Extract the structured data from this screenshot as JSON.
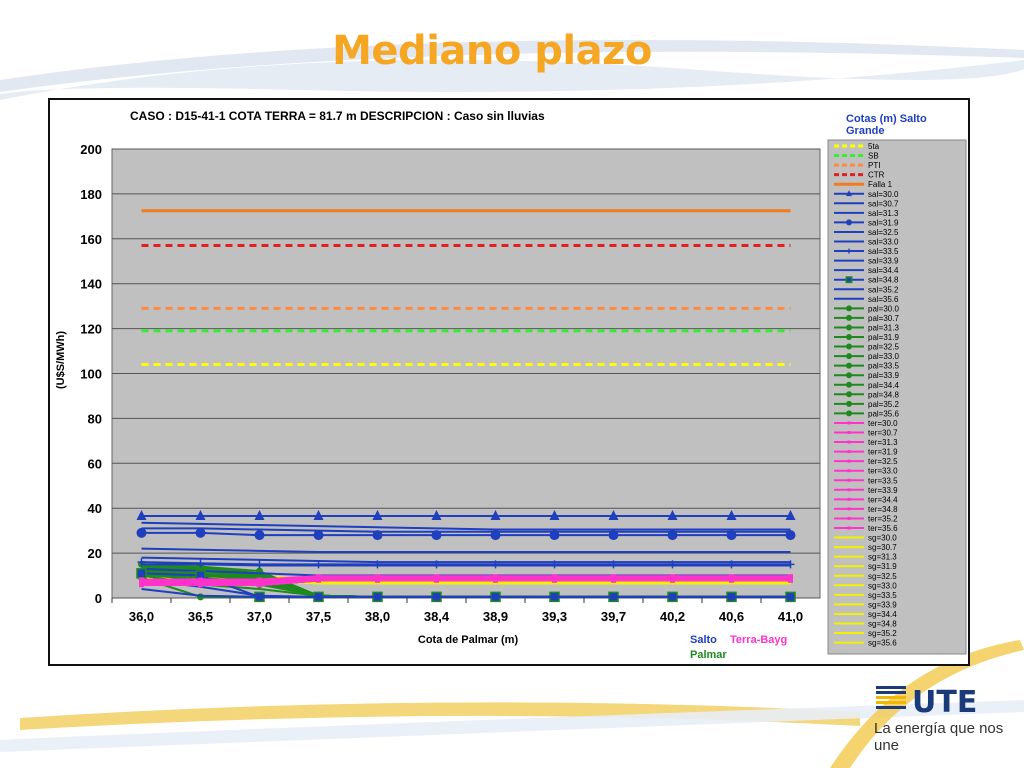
{
  "slide": {
    "title": "Mediano plazo",
    "tagline": "La energía que nos une",
    "logo_text": "UTE"
  },
  "colors": {
    "title": "#f5a623",
    "plot_bg": "#c0c0c0",
    "salto": "#1f3fbf",
    "palmar": "#1e8a1e",
    "terra": "#ff33cc",
    "sg": "#f2f200",
    "cota_5ta": "#ffff00",
    "cota_sb": "#33ee33",
    "cota_pti": "#ff8a3d",
    "cota_ctr": "#e02020",
    "falla": "#f47a20"
  },
  "chart_data": {
    "type": "line",
    "case_label": "CASO : D15-41-1 COTA TERRA = 81.7 m  DESCRIPCION :     Caso sin lluvias",
    "xlabel": "Cota de Palmar (m)",
    "ylabel": "(U$S/MWh)",
    "categories": [
      "36,0",
      "36,5",
      "37,0",
      "37,5",
      "38,0",
      "38,4",
      "38,9",
      "39,3",
      "39,7",
      "40,2",
      "40,6",
      "41,0"
    ],
    "ylim": [
      0,
      200
    ],
    "yticks": [
      0,
      20,
      40,
      60,
      80,
      100,
      120,
      140,
      160,
      180,
      200
    ],
    "grid": true,
    "legend_position": "right",
    "legend_title": "Cotas (m) Salto Grande",
    "bottom_labels": {
      "salto": "Salto",
      "terra": "Terra-Bayg",
      "palmar": "Palmar"
    },
    "series": [
      {
        "name": "5ta",
        "group": "cota",
        "color": "#ffff00",
        "dash": true,
        "marker": "none",
        "values": [
          104,
          104,
          104,
          104,
          104,
          104,
          104,
          104,
          104,
          104,
          104,
          104
        ]
      },
      {
        "name": "SB",
        "group": "cota",
        "color": "#33ee33",
        "dash": true,
        "marker": "none",
        "values": [
          119,
          119,
          119,
          119,
          119,
          119,
          119,
          119,
          119,
          119,
          119,
          119
        ]
      },
      {
        "name": "PTI",
        "group": "cota",
        "color": "#ff8a3d",
        "dash": true,
        "marker": "none",
        "values": [
          129,
          129,
          129,
          129,
          129,
          129,
          129,
          129,
          129,
          129,
          129,
          129
        ]
      },
      {
        "name": "CTR",
        "group": "cota",
        "color": "#e02020",
        "dash": true,
        "marker": "none",
        "values": [
          157,
          157,
          157,
          157,
          157,
          157,
          157,
          157,
          157,
          157,
          157,
          157
        ]
      },
      {
        "name": "Falla 1",
        "group": "cota",
        "color": "#f47a20",
        "dash": false,
        "marker": "none",
        "values": [
          172.5,
          172.5,
          172.5,
          172.5,
          172.5,
          172.5,
          172.5,
          172.5,
          172.5,
          172.5,
          172.5,
          172.5
        ]
      },
      {
        "name": "sal=30.0",
        "group": "sal",
        "color": "#1f3fbf",
        "marker": "triangle",
        "values": [
          36.5,
          36.5,
          36.5,
          36.5,
          36.5,
          36.5,
          36.5,
          36.5,
          36.5,
          36.5,
          36.5,
          36.5
        ]
      },
      {
        "name": "sal=30.7",
        "group": "sal",
        "color": "#1f3fbf",
        "marker": "none",
        "values": [
          33.5,
          33,
          32.5,
          32,
          31.5,
          31,
          30.5,
          30.5,
          30.5,
          30.5,
          30.5,
          30.5
        ]
      },
      {
        "name": "sal=31.3",
        "group": "sal",
        "color": "#1f3fbf",
        "marker": "none",
        "values": [
          31,
          31,
          30.5,
          30,
          29.5,
          29.5,
          29.5,
          29.5,
          29.5,
          29.5,
          29.5,
          29.5
        ]
      },
      {
        "name": "sal=31.9",
        "group": "sal",
        "color": "#1f3fbf",
        "marker": "circle",
        "values": [
          29,
          29,
          28,
          28,
          28,
          28,
          28,
          28,
          28,
          28,
          28,
          28
        ]
      },
      {
        "name": "sal=32.5",
        "group": "sal",
        "color": "#1f3fbf",
        "marker": "none",
        "values": [
          22,
          21.5,
          21,
          20.5,
          20.5,
          20.5,
          20.5,
          20.5,
          20.5,
          20.5,
          20.5,
          20.5
        ]
      },
      {
        "name": "sal=33.0",
        "group": "sal",
        "color": "#1f3fbf",
        "marker": "none",
        "values": [
          18,
          17.5,
          17,
          16.5,
          16,
          16,
          16,
          16,
          16,
          16,
          16,
          16
        ]
      },
      {
        "name": "sal=33.5",
        "group": "sal",
        "color": "#1f3fbf",
        "marker": "star",
        "values": [
          16,
          15.5,
          15,
          15,
          15,
          15,
          15,
          15,
          15,
          15,
          15,
          15
        ]
      },
      {
        "name": "sal=33.9",
        "group": "sal",
        "color": "#1f3fbf",
        "marker": "none",
        "values": [
          15,
          15,
          14.5,
          14.5,
          14.5,
          14.5,
          14.5,
          14.5,
          14.5,
          14.5,
          14.5,
          14.5
        ]
      },
      {
        "name": "sal=34.4",
        "group": "sal",
        "color": "#1f3fbf",
        "marker": "none",
        "values": [
          13,
          12,
          11,
          10,
          10,
          10,
          10,
          10,
          10,
          10,
          10,
          10
        ]
      },
      {
        "name": "sal=34.8",
        "group": "sal",
        "color": "#1f3fbf",
        "marker": "square",
        "values": [
          11,
          10,
          0.5,
          0.5,
          0.5,
          0.5,
          0.5,
          0.5,
          0.5,
          0.5,
          0.5,
          0.5
        ]
      },
      {
        "name": "sal=35.2",
        "group": "sal",
        "color": "#1f3fbf",
        "marker": "none",
        "values": [
          8,
          5,
          1,
          0.5,
          0.5,
          0.5,
          0.5,
          0.5,
          0.5,
          0.5,
          0.5,
          0.5
        ]
      },
      {
        "name": "sal=35.6",
        "group": "sal",
        "color": "#1f3fbf",
        "marker": "none",
        "values": [
          4,
          1,
          0.5,
          0.5,
          0.5,
          0.5,
          0.5,
          0.5,
          0.5,
          0.5,
          0.5,
          0.5
        ]
      },
      {
        "name": "pal=30.0",
        "group": "pal",
        "color": "#1e8a1e",
        "marker": "circle",
        "values": [
          15,
          14,
          12,
          1,
          0.5,
          0.5,
          0.5,
          0.5,
          0.5,
          0.5,
          0.5,
          0.5
        ]
      },
      {
        "name": "pal=30.7",
        "group": "pal",
        "color": "#1e8a1e",
        "marker": "circle",
        "values": [
          14.5,
          13.5,
          11,
          1,
          0.5,
          0.5,
          0.5,
          0.5,
          0.5,
          0.5,
          0.5,
          0.5
        ]
      },
      {
        "name": "pal=31.3",
        "group": "pal",
        "color": "#1e8a1e",
        "marker": "circle",
        "values": [
          14,
          13,
          10.5,
          1,
          0.5,
          0.5,
          0.5,
          0.5,
          0.5,
          0.5,
          0.5,
          0.5
        ]
      },
      {
        "name": "pal=31.9",
        "group": "pal",
        "color": "#1e8a1e",
        "marker": "circle",
        "values": [
          13.5,
          12.5,
          10,
          1,
          0.5,
          0.5,
          0.5,
          0.5,
          0.5,
          0.5,
          0.5,
          0.5
        ]
      },
      {
        "name": "pal=32.5",
        "group": "pal",
        "color": "#1e8a1e",
        "marker": "circle",
        "values": [
          13,
          12,
          9.5,
          1,
          0.5,
          0.5,
          0.5,
          0.5,
          0.5,
          0.5,
          0.5,
          0.5
        ]
      },
      {
        "name": "pal=33.0",
        "group": "pal",
        "color": "#1e8a1e",
        "marker": "circle",
        "values": [
          12.5,
          11,
          9,
          1,
          0.5,
          0.5,
          0.5,
          0.5,
          0.5,
          0.5,
          0.5,
          0.5
        ]
      },
      {
        "name": "pal=33.5",
        "group": "pal",
        "color": "#1e8a1e",
        "marker": "circle",
        "values": [
          12,
          10.5,
          8.5,
          1,
          0.5,
          0.5,
          0.5,
          0.5,
          0.5,
          0.5,
          0.5,
          0.5
        ]
      },
      {
        "name": "pal=33.9",
        "group": "pal",
        "color": "#1e8a1e",
        "marker": "circle",
        "values": [
          11.5,
          10,
          8,
          1,
          0.5,
          0.5,
          0.5,
          0.5,
          0.5,
          0.5,
          0.5,
          0.5
        ]
      },
      {
        "name": "pal=34.4",
        "group": "pal",
        "color": "#1e8a1e",
        "marker": "circle",
        "values": [
          11,
          9,
          7,
          1,
          0.5,
          0.5,
          0.5,
          0.5,
          0.5,
          0.5,
          0.5,
          0.5
        ]
      },
      {
        "name": "pal=34.8",
        "group": "pal",
        "color": "#1e8a1e",
        "marker": "circle",
        "values": [
          10.5,
          8,
          6,
          1,
          0.5,
          0.5,
          0.5,
          0.5,
          0.5,
          0.5,
          0.5,
          0.5
        ]
      },
      {
        "name": "pal=35.2",
        "group": "pal",
        "color": "#1e8a1e",
        "marker": "circle",
        "values": [
          10,
          6,
          4,
          1,
          0.5,
          0.5,
          0.5,
          0.5,
          0.5,
          0.5,
          0.5,
          0.5
        ]
      },
      {
        "name": "pal=35.6",
        "group": "pal",
        "color": "#1e8a1e",
        "marker": "circle",
        "values": [
          9,
          0.5,
          0.5,
          0.5,
          0.5,
          0.5,
          0.5,
          0.5,
          0.5,
          0.5,
          0.5,
          0.5
        ]
      },
      {
        "name": "ter=30.0",
        "group": "ter",
        "color": "#ff33cc",
        "marker": "square-s",
        "values": [
          8,
          8,
          8,
          9.5,
          9.5,
          9.5,
          9.5,
          9.5,
          9.5,
          9.5,
          9.5,
          9.5
        ]
      },
      {
        "name": "ter=30.7",
        "group": "ter",
        "color": "#ff33cc",
        "marker": "square-s",
        "values": [
          7.5,
          7.5,
          7.5,
          9,
          9,
          9,
          9,
          9,
          9,
          9,
          9,
          9
        ]
      },
      {
        "name": "ter=31.3",
        "group": "ter",
        "color": "#ff33cc",
        "marker": "square-s",
        "values": [
          7,
          7,
          7,
          8.5,
          8.5,
          8.5,
          8.5,
          8.5,
          8.5,
          8.5,
          8.5,
          8.5
        ]
      },
      {
        "name": "ter=31.9",
        "group": "ter",
        "color": "#ff33cc",
        "marker": "square-s",
        "values": [
          6.5,
          6.5,
          6.5,
          8,
          8,
          8,
          8,
          8,
          8,
          8,
          8,
          8
        ]
      },
      {
        "name": "ter=32.5",
        "group": "ter",
        "color": "#ff33cc",
        "marker": "square-s",
        "values": [
          6,
          6,
          6,
          8,
          8,
          8,
          8,
          8,
          8,
          8,
          8,
          8
        ]
      },
      {
        "name": "ter=33.0",
        "group": "ter",
        "color": "#ff33cc",
        "marker": "square-s",
        "values": [
          6,
          6,
          6,
          8,
          8,
          8,
          8,
          8,
          8,
          8,
          8,
          8
        ]
      },
      {
        "name": "ter=33.5",
        "group": "ter",
        "color": "#ff33cc",
        "marker": "square-s",
        "values": [
          6,
          6,
          6,
          8,
          8,
          8,
          8,
          8,
          8,
          8,
          8,
          8
        ]
      },
      {
        "name": "ter=33.9",
        "group": "ter",
        "color": "#ff33cc",
        "marker": "square-s",
        "values": [
          6,
          6,
          6,
          8,
          8,
          8,
          8,
          8,
          8,
          8,
          8,
          8
        ]
      },
      {
        "name": "ter=34.4",
        "group": "ter",
        "color": "#ff33cc",
        "marker": "square-s",
        "values": [
          6,
          6,
          6,
          8,
          8,
          8,
          8,
          8,
          8,
          8,
          8,
          8
        ]
      },
      {
        "name": "ter=34.8",
        "group": "ter",
        "color": "#ff33cc",
        "marker": "square-s",
        "values": [
          6,
          6,
          6,
          8,
          8,
          8,
          8,
          8,
          8,
          8,
          8,
          8
        ]
      },
      {
        "name": "ter=35.2",
        "group": "ter",
        "color": "#ff33cc",
        "marker": "square-s",
        "values": [
          6,
          6,
          6,
          8,
          8,
          8,
          8,
          8,
          8,
          8,
          8,
          8
        ]
      },
      {
        "name": "ter=35.6",
        "group": "ter",
        "color": "#ff33cc",
        "marker": "square-s",
        "values": [
          6,
          6,
          6,
          8,
          8,
          8,
          8,
          8,
          8,
          8,
          8,
          8
        ]
      },
      {
        "name": "sg=30.0",
        "group": "sg",
        "color": "#f2f200",
        "marker": "none",
        "values": [
          10,
          10,
          10,
          8,
          8,
          8,
          8,
          8,
          8,
          8,
          8,
          8
        ]
      },
      {
        "name": "sg=30.7",
        "group": "sg",
        "color": "#f2f200",
        "marker": "none",
        "values": [
          9.5,
          9.5,
          9.5,
          7.5,
          7.5,
          7.5,
          7.5,
          7.5,
          7.5,
          7.5,
          7.5,
          7.5
        ]
      },
      {
        "name": "sg=31.3",
        "group": "sg",
        "color": "#f2f200",
        "marker": "none",
        "values": [
          9,
          9,
          9,
          7,
          7,
          7,
          7,
          7,
          7,
          7,
          7,
          7
        ]
      },
      {
        "name": "sg=31.9",
        "group": "sg",
        "color": "#f2f200",
        "marker": "none",
        "values": [
          8.5,
          8.5,
          8.5,
          7,
          7,
          7,
          7,
          7,
          7,
          7,
          7,
          7
        ]
      },
      {
        "name": "sg=32.5",
        "group": "sg",
        "color": "#f2f200",
        "marker": "none",
        "values": [
          8,
          8,
          8,
          6.5,
          6.5,
          6.5,
          6.5,
          6.5,
          6.5,
          6.5,
          6.5,
          6.5
        ]
      },
      {
        "name": "sg=33.0",
        "group": "sg",
        "color": "#f2f200",
        "marker": "none",
        "values": [
          8,
          8,
          8,
          6.5,
          6.5,
          6.5,
          6.5,
          6.5,
          6.5,
          6.5,
          6.5,
          6.5
        ]
      },
      {
        "name": "sg=33.5",
        "group": "sg",
        "color": "#f2f200",
        "marker": "none",
        "values": [
          8,
          8,
          8,
          6.5,
          6.5,
          6.5,
          6.5,
          6.5,
          6.5,
          6.5,
          6.5,
          6.5
        ]
      },
      {
        "name": "sg=33.9",
        "group": "sg",
        "color": "#f2f200",
        "marker": "none",
        "values": [
          8,
          8,
          8,
          6.5,
          6.5,
          6.5,
          6.5,
          6.5,
          6.5,
          6.5,
          6.5,
          6.5
        ]
      },
      {
        "name": "sg=34.4",
        "group": "sg",
        "color": "#f2f200",
        "marker": "none",
        "values": [
          8,
          8,
          8,
          6.5,
          6.5,
          6.5,
          6.5,
          6.5,
          6.5,
          6.5,
          6.5,
          6.5
        ]
      },
      {
        "name": "sg=34.8",
        "group": "sg",
        "color": "#f2f200",
        "marker": "none",
        "values": [
          8,
          8,
          8,
          6.5,
          6.5,
          6.5,
          6.5,
          6.5,
          6.5,
          6.5,
          6.5,
          6.5
        ]
      },
      {
        "name": "sg=35.2",
        "group": "sg",
        "color": "#f2f200",
        "marker": "none",
        "values": [
          8,
          8,
          8,
          6.5,
          6.5,
          6.5,
          6.5,
          6.5,
          6.5,
          6.5,
          6.5,
          6.5
        ]
      },
      {
        "name": "sg=35.6",
        "group": "sg",
        "color": "#f2f200",
        "marker": "none",
        "values": [
          8,
          8,
          8,
          6.5,
          6.5,
          6.5,
          6.5,
          6.5,
          6.5,
          6.5,
          6.5,
          6.5
        ]
      }
    ]
  }
}
